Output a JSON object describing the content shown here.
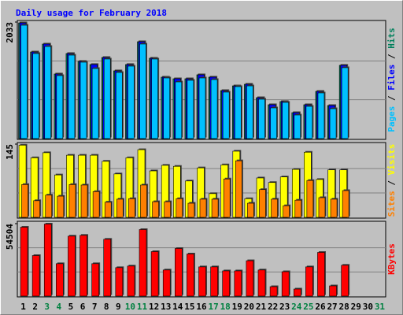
{
  "chart_data": {
    "type": "bar",
    "title": "Daily usage for February 2018",
    "categories": [
      "1",
      "2",
      "3",
      "4",
      "5",
      "6",
      "7",
      "8",
      "9",
      "10",
      "11",
      "12",
      "13",
      "14",
      "15",
      "16",
      "17",
      "18",
      "19",
      "20",
      "21",
      "22",
      "23",
      "24",
      "25",
      "26",
      "27",
      "28",
      "29",
      "30",
      "31"
    ],
    "category_colors": [
      "#000000",
      "#000000",
      "#008040",
      "#008040",
      "#000000",
      "#000000",
      "#000000",
      "#000000",
      "#000000",
      "#008040",
      "#008040",
      "#000000",
      "#000000",
      "#000000",
      "#000000",
      "#000000",
      "#008040",
      "#008040",
      "#000000",
      "#000000",
      "#000000",
      "#000000",
      "#000000",
      "#008040",
      "#008040",
      "#000000",
      "#000000",
      "#000000",
      "#000000",
      "#000000",
      "#008040"
    ],
    "legend_separator": " / ",
    "grid": true,
    "panels": [
      {
        "ylim": [
          0,
          2033
        ],
        "yticks": [
          2033
        ],
        "series": [
          {
            "name": "Hits",
            "color": "#00805c",
            "values": [
              2019,
              1511,
              1649,
              1127,
              1484,
              1347,
              1292,
              1415,
              1182,
              1292,
              1690,
              1402,
              1072,
              1044,
              1044,
              1113,
              1072,
              838,
              920,
              948,
              714,
              591,
              646,
              453,
              591,
              824,
              577,
              1278,
              null,
              null,
              null
            ]
          },
          {
            "name": "Files",
            "color": "#0000ff",
            "values": [
              2019,
              1511,
              1649,
              1127,
              1484,
              1347,
              1292,
              1415,
              1182,
              1292,
              1690,
              1402,
              1072,
              1044,
              1044,
              1113,
              1072,
              838,
              920,
              948,
              714,
              591,
              646,
              453,
              591,
              824,
              577,
              1278,
              null,
              null,
              null
            ]
          },
          {
            "name": "Pages",
            "color": "#00c0ff",
            "values": [
              1978,
              1484,
              1607,
              1099,
              1456,
              1333,
              1223,
              1388,
              1154,
              1264,
              1649,
              1388,
              1058,
              989,
              1017,
              1058,
              1030,
              811,
              907,
              920,
              687,
              536,
              632,
              412,
              563,
              797,
              522,
              1237,
              null,
              null,
              null
            ]
          }
        ]
      },
      {
        "ylim": [
          0,
          145
        ],
        "yticks": [
          145
        ],
        "series": [
          {
            "name": "Visits",
            "color": "#ffff00",
            "values": [
              143,
              118,
              128,
              84,
              123,
              123,
              123,
              111,
              86,
              118,
              134,
              92,
              103,
              101,
              72,
              98,
              47,
              104,
              131,
              37,
              78,
              69,
              80,
              95,
              129,
              75,
              94,
              94,
              null,
              null,
              null
            ]
          },
          {
            "name": "Sites",
            "color": "#ff8000",
            "values": [
              65,
              33,
              44,
              42,
              65,
              64,
              51,
              30,
              36,
              37,
              64,
              31,
              31,
              37,
              28,
              36,
              36,
              76,
              112,
              28,
              55,
              36,
              23,
              34,
              73,
              39,
              36,
              53,
              null,
              null,
              null
            ]
          }
        ]
      },
      {
        "ylim": [
          0,
          54504
        ],
        "yticks": [
          54504
        ],
        "series": [
          {
            "name": "KBytes",
            "color": "#ff0000",
            "values": [
              51839,
              30505,
              54209,
              24388,
              45125,
              45718,
              24388,
              42755,
              21426,
              22611,
              50062,
              33467,
              19649,
              35837,
              31690,
              21996,
              21996,
              18983,
              18983,
              26628,
              19649,
              7109,
              18364,
              5331,
              21996,
              32875,
              7701,
              23203,
              null,
              null,
              null
            ]
          }
        ]
      }
    ]
  }
}
